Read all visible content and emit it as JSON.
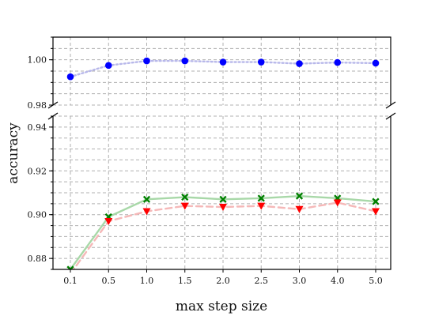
{
  "chart_data": {
    "type": "line",
    "xlabel": "max step size",
    "ylabel": "accuracy",
    "categories": [
      "0.1",
      "0.5",
      "1.0",
      "1.5",
      "2.0",
      "2.5",
      "3.0",
      "4.0",
      "5.0"
    ],
    "broken_y_axis": true,
    "upper_panel": {
      "ylim": [
        0.98,
        1.01
      ],
      "yticks": [
        "0.98",
        "1.00"
      ],
      "series": [
        {
          "values": [
            0.9925,
            0.9975,
            0.9995,
            0.9995,
            0.999,
            0.999,
            0.9983,
            0.9988,
            0.9985
          ],
          "color": "#0000ff",
          "line_color": "#b8b8ea",
          "marker": "circle",
          "line_style": "dotted"
        }
      ]
    },
    "lower_panel": {
      "ylim": [
        0.875,
        0.945
      ],
      "yticks": [
        "0.88",
        "0.90",
        "0.92",
        "0.94"
      ],
      "series": [
        {
          "values": [
            0.875,
            0.899,
            0.907,
            0.908,
            0.907,
            0.9075,
            0.9085,
            0.9075,
            0.906
          ],
          "color": "#008000",
          "line_color": "#a8d8a8",
          "marker": "x-filled",
          "line_style": "solid"
        },
        {
          "values": [
            0.873,
            0.897,
            0.9015,
            0.904,
            0.9035,
            0.904,
            0.9025,
            0.9055,
            0.9015
          ],
          "color": "#ff0000",
          "line_color": "#f5b8b8",
          "marker": "triangle-down",
          "line_style": "dashed"
        }
      ]
    },
    "grid": true,
    "minor_grid": true
  }
}
